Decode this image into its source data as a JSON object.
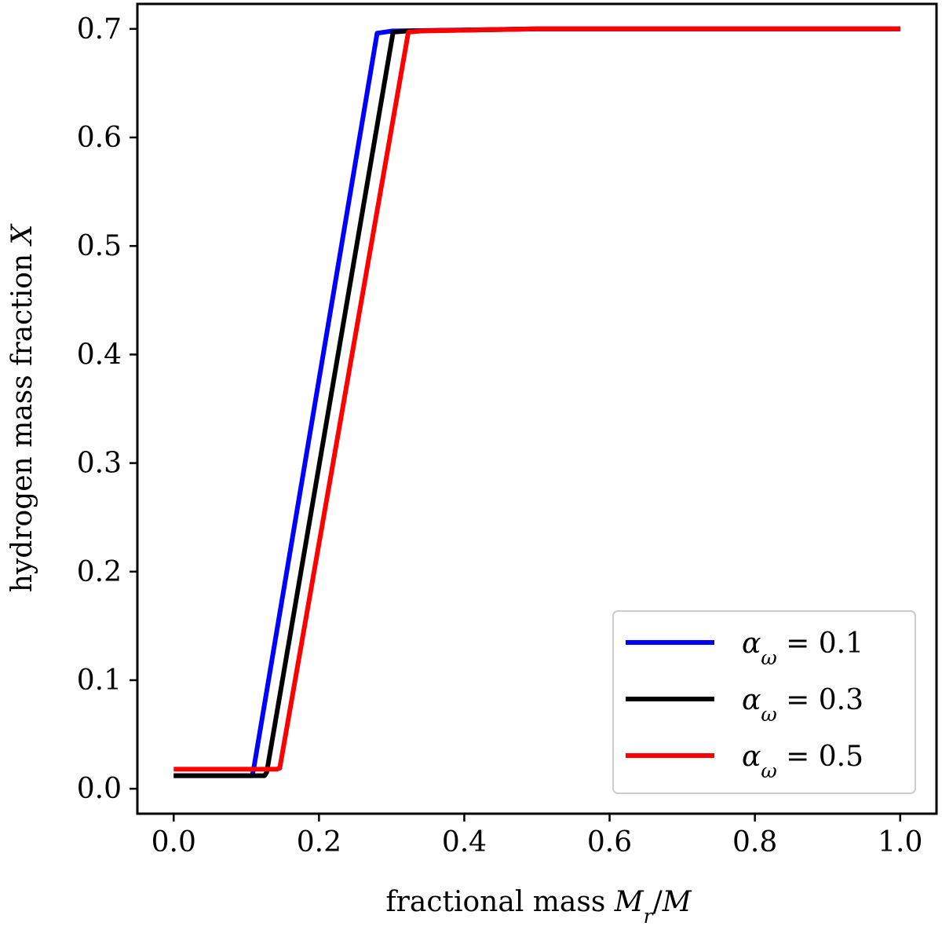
{
  "chart_data": {
    "type": "line",
    "title": "",
    "xlabel": "fractional mass M_r/M",
    "ylabel": "hydrogen mass fraction X",
    "xlim": [
      -0.05,
      1.05
    ],
    "ylim": [
      -0.023,
      0.723
    ],
    "xticks": [
      0.0,
      0.2,
      0.4,
      0.6,
      0.8,
      1.0
    ],
    "xtick_labels": [
      "0.0",
      "0.2",
      "0.4",
      "0.6",
      "0.8",
      "1.0"
    ],
    "yticks": [
      0.0,
      0.1,
      0.2,
      0.3,
      0.4,
      0.5,
      0.6,
      0.7
    ],
    "ytick_labels": [
      "0.0",
      "0.1",
      "0.2",
      "0.3",
      "0.4",
      "0.5",
      "0.6",
      "0.7"
    ],
    "grid": false,
    "legend_position": "lower-right",
    "series": [
      {
        "name": "α_ω = 0.1",
        "color": "#0000ff",
        "x": [
          0.0,
          0.108,
          0.11,
          0.28,
          0.3,
          0.5,
          1.0
        ],
        "y": [
          0.012,
          0.012,
          0.018,
          0.696,
          0.698,
          0.7,
          0.7
        ]
      },
      {
        "name": "α_ω = 0.3",
        "color": "#000000",
        "x": [
          0.0,
          0.125,
          0.128,
          0.302,
          0.32,
          0.5,
          1.0
        ],
        "y": [
          0.012,
          0.012,
          0.015,
          0.697,
          0.698,
          0.7,
          0.7
        ]
      },
      {
        "name": "α_ω = 0.5",
        "color": "#ff0000",
        "x": [
          0.0,
          0.142,
          0.146,
          0.323,
          0.34,
          0.5,
          1.0
        ],
        "y": [
          0.018,
          0.018,
          0.019,
          0.697,
          0.698,
          0.7,
          0.7
        ]
      }
    ]
  }
}
